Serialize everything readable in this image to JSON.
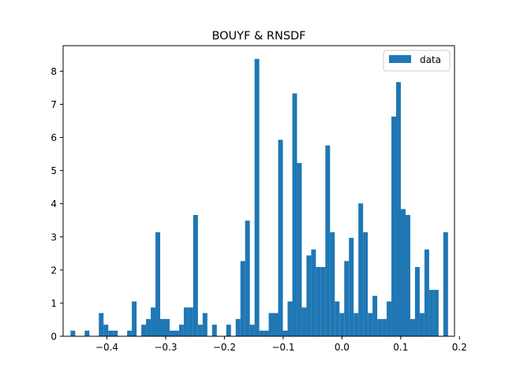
{
  "chart_data": {
    "type": "bar",
    "title": "BOUYF & RNSDF",
    "xlabel": "",
    "ylabel": "",
    "xlim": [
      -0.4745,
      0.1915
    ],
    "ylim": [
      0,
      8.77
    ],
    "x_ticks": [
      -0.4,
      -0.3,
      -0.2,
      -0.1,
      0.0,
      0.1,
      0.2
    ],
    "x_tick_labels": [
      "−0.4",
      "−0.3",
      "−0.2",
      "−0.1",
      "0.0",
      "0.1",
      "0.2"
    ],
    "y_ticks": [
      0,
      1,
      2,
      3,
      4,
      5,
      6,
      7,
      8
    ],
    "y_tick_labels": [
      "0",
      "1",
      "2",
      "3",
      "4",
      "5",
      "6",
      "7",
      "8"
    ],
    "grid": false,
    "legend_position": "top-right",
    "bin_start": -0.4619,
    "bin_width": 0.00803,
    "series": [
      {
        "name": "data",
        "color": "#1f77b4",
        "values": [
          0.17,
          0,
          0,
          0.17,
          0,
          0,
          0.7,
          0.35,
          0.17,
          0.17,
          0,
          0,
          0.17,
          1.05,
          0,
          0.35,
          0.52,
          0.87,
          3.14,
          0.52,
          0.52,
          0.17,
          0.17,
          0.35,
          0.87,
          0.87,
          3.66,
          0.35,
          0.7,
          0,
          0.35,
          0,
          0,
          0.35,
          0,
          0.52,
          2.27,
          3.49,
          0.35,
          8.37,
          0.17,
          0.17,
          0.7,
          0.7,
          5.93,
          0.17,
          1.05,
          7.33,
          5.23,
          0.87,
          2.44,
          2.62,
          2.09,
          2.09,
          5.76,
          3.14,
          1.05,
          0.7,
          2.27,
          2.97,
          0.7,
          4.01,
          3.14,
          0.7,
          1.22,
          0.52,
          0.52,
          1.05,
          6.63,
          7.67,
          3.84,
          3.66,
          0.52,
          2.09,
          0.7,
          2.62,
          1.4,
          1.4,
          0,
          3.14
        ]
      }
    ]
  }
}
